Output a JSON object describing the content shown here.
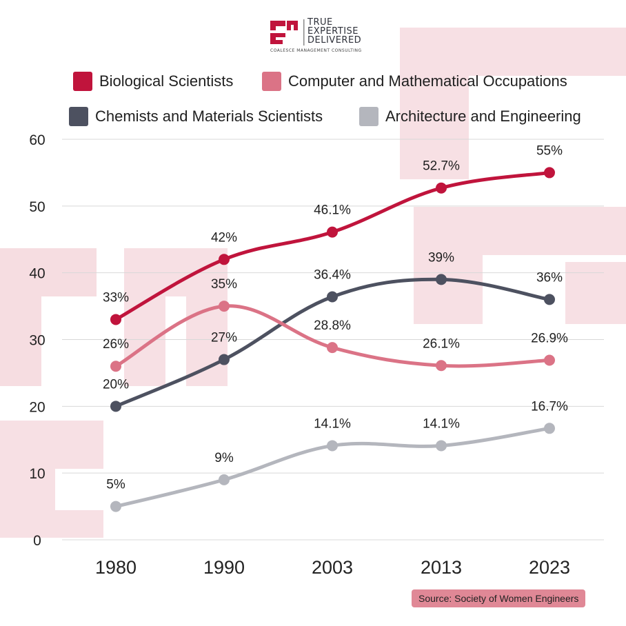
{
  "logo": {
    "tagline_lines": [
      "TRUE",
      "EXPERTISE",
      "DELIVERED"
    ],
    "company": "COALESCE MANAGEMENT CONSULTING"
  },
  "colors": {
    "biological": "#c0143c",
    "computer": "#db7386",
    "chemists": "#4d5160",
    "architecture": "#b4b6bd",
    "watermark": "#f6dde1",
    "grid": "#d8d8d8"
  },
  "chart_data": {
    "type": "line",
    "categories": [
      "1980",
      "1990",
      "2003",
      "2013",
      "2023"
    ],
    "ylim": [
      0,
      60
    ],
    "yticks": [
      0,
      10,
      20,
      30,
      40,
      50,
      60
    ],
    "grid": true,
    "legend_position": "top",
    "series": [
      {
        "key": "biological",
        "name": "Biological Scientists",
        "values": [
          33,
          42,
          46.1,
          52.7,
          55
        ],
        "labels": [
          "33%",
          "42%",
          "46.1%",
          "52.7%",
          "55%"
        ]
      },
      {
        "key": "computer",
        "name": "Computer and Mathematical Occupations",
        "values": [
          26,
          35,
          28.8,
          26.1,
          26.9
        ],
        "labels": [
          "26%",
          "35%",
          "28.8%",
          "26.1%",
          "26.9%"
        ]
      },
      {
        "key": "chemists",
        "name": "Chemists and Materials Scientists",
        "values": [
          20,
          27,
          36.4,
          39,
          36
        ],
        "labels": [
          "20%",
          "27%",
          "36.4%",
          "39%",
          "36%"
        ]
      },
      {
        "key": "architecture",
        "name": "Architecture and Engineering",
        "values": [
          5,
          9,
          14.1,
          14.1,
          16.7
        ],
        "labels": [
          "5%",
          "9%",
          "14.1%",
          "14.1%",
          "16.7%"
        ]
      }
    ]
  },
  "source": "Source: Society of Women Engineers"
}
